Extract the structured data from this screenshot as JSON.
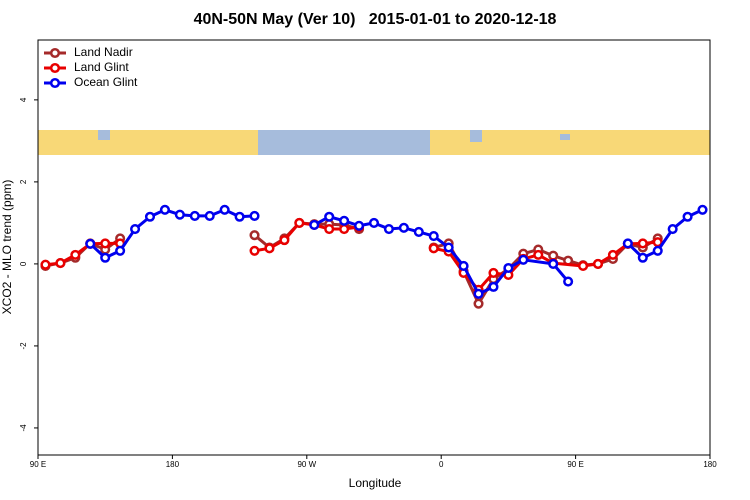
{
  "chart_data": {
    "type": "line",
    "title": "40N-50N May (Ver 10)   2015-01-01 to 2020-12-18",
    "xlabel": "Longitude",
    "ylabel": "XCO2 - MLO trend (ppm)",
    "xlim": [
      90,
      540
    ],
    "xticks": [
      {
        "value": 90,
        "label": "90 E"
      },
      180,
      {
        "value": 270,
        "label": "90 W"
      },
      {
        "value": 360,
        "label": "0"
      },
      {
        "value": 450,
        "label": "90 E"
      },
      {
        "value": 540,
        "label": "180"
      }
    ],
    "ylim": [
      -4.66,
      5.46
    ],
    "yticks": [
      -4,
      -2,
      0,
      2,
      4
    ],
    "legend": "top-left",
    "series": [
      {
        "name": "Land Nadir",
        "color": "#a52a2a",
        "x": [
          95,
          105,
          115,
          125,
          135,
          145,
          185,
          235,
          245,
          255,
          265,
          275,
          285,
          295,
          305,
          325,
          355,
          365,
          375,
          385,
          395,
          405,
          415,
          425,
          435,
          445,
          455,
          465,
          475,
          485,
          495,
          505
        ],
        "values": [
          -0.05,
          0.02,
          0.15,
          0.5,
          0.35,
          0.62,
          null,
          0.7,
          0.4,
          0.62,
          1.0,
          0.97,
          0.97,
          0.95,
          0.85,
          null,
          0.4,
          0.5,
          -0.18,
          -0.97,
          -0.37,
          -0.12,
          0.25,
          0.35,
          0.2,
          0.08,
          -0.03,
          0.0,
          0.12,
          0.49,
          0.4,
          0.62
        ]
      },
      {
        "name": "Land Glint",
        "color": "#e80000",
        "x": [
          95,
          105,
          115,
          125,
          135,
          145,
          185,
          235,
          245,
          255,
          265,
          275,
          285,
          295,
          305,
          325,
          355,
          365,
          375,
          385,
          395,
          405,
          415,
          425,
          435,
          455,
          465,
          475,
          485,
          495,
          505
        ],
        "values": [
          -0.02,
          0.02,
          0.22,
          0.49,
          0.5,
          0.5,
          null,
          0.32,
          0.38,
          0.58,
          1.0,
          0.95,
          0.85,
          0.85,
          0.9,
          null,
          0.38,
          0.3,
          -0.22,
          -0.63,
          -0.22,
          -0.27,
          0.12,
          0.22,
          0.02,
          -0.05,
          0.0,
          0.22,
          0.49,
          0.5,
          0.53
        ]
      },
      {
        "name": "Ocean Glint",
        "color": "#0000ee",
        "x": [
          125,
          135,
          145,
          155,
          165,
          175,
          185,
          195,
          205,
          215,
          225,
          235,
          255,
          275,
          285,
          295,
          305,
          315,
          325,
          335,
          345,
          355,
          365,
          375,
          385,
          395,
          405,
          415,
          435,
          445,
          465,
          485,
          495,
          505,
          515,
          525,
          535
        ],
        "values": [
          0.49,
          0.15,
          0.32,
          0.85,
          1.15,
          1.32,
          1.2,
          1.17,
          1.17,
          1.32,
          1.15,
          1.17,
          null,
          0.95,
          1.15,
          1.05,
          0.93,
          1.0,
          0.85,
          0.88,
          0.78,
          0.68,
          0.4,
          -0.05,
          -0.73,
          -0.56,
          -0.1,
          0.1,
          0.0,
          -0.43,
          null,
          0.5,
          0.15,
          0.32,
          0.85,
          1.15,
          1.32
        ]
      }
    ]
  }
}
